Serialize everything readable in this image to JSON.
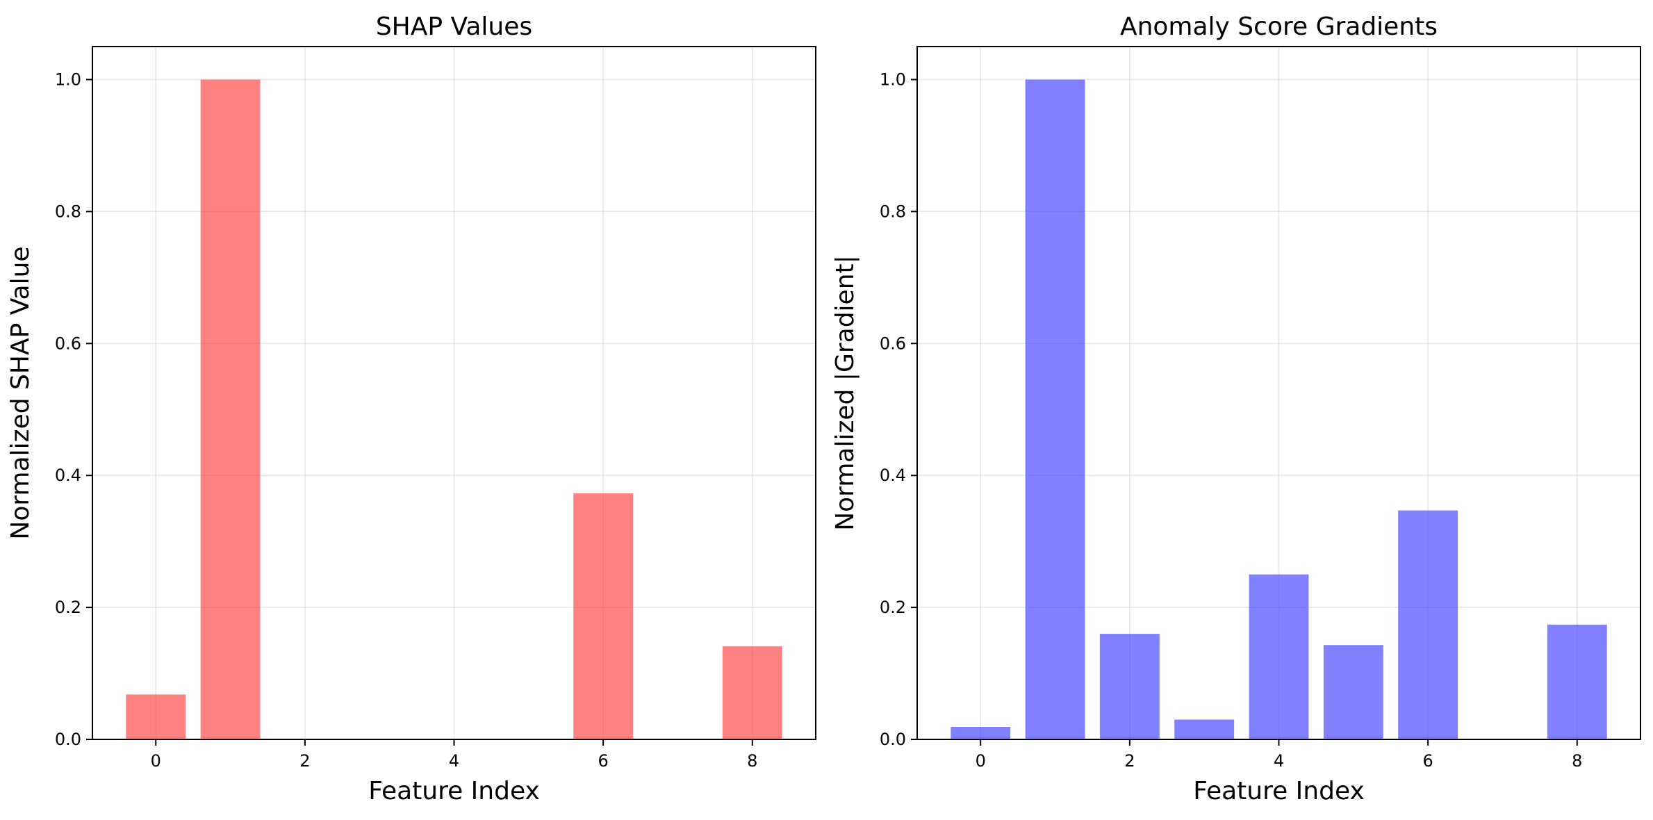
{
  "chart_data": [
    {
      "type": "bar",
      "title": "SHAP Values",
      "xlabel": "Feature Index",
      "ylabel": "Normalized SHAP Value",
      "x": [
        0,
        1,
        2,
        3,
        4,
        5,
        6,
        7,
        8
      ],
      "values": [
        0.068,
        1.0,
        0.0,
        0.0,
        0.0,
        0.0,
        0.373,
        0.0,
        0.141
      ],
      "color": "#ff4c4c",
      "xlim": [
        -0.85,
        8.85
      ],
      "ylim": [
        0,
        1.05
      ],
      "xticks": [
        0,
        2,
        4,
        6,
        8
      ],
      "yticks": [
        0.0,
        0.2,
        0.4,
        0.6,
        0.8,
        1.0
      ],
      "xtick_labels": [
        "0",
        "2",
        "4",
        "6",
        "8"
      ],
      "ytick_labels": [
        "0.0",
        "0.2",
        "0.4",
        "0.6",
        "0.8",
        "1.0"
      ],
      "grid": true
    },
    {
      "type": "bar",
      "title": "Anomaly Score Gradients",
      "xlabel": "Feature Index",
      "ylabel": "Normalized |Gradient|",
      "x": [
        0,
        1,
        2,
        3,
        4,
        5,
        6,
        7,
        8
      ],
      "values": [
        0.019,
        1.0,
        0.16,
        0.03,
        0.25,
        0.143,
        0.347,
        0.0,
        0.174
      ],
      "color": "#4c4cff",
      "xlim": [
        -0.85,
        8.85
      ],
      "ylim": [
        0,
        1.05
      ],
      "xticks": [
        0,
        2,
        4,
        6,
        8
      ],
      "yticks": [
        0.0,
        0.2,
        0.4,
        0.6,
        0.8,
        1.0
      ],
      "xtick_labels": [
        "0",
        "2",
        "4",
        "6",
        "8"
      ],
      "ytick_labels": [
        "0.0",
        "0.2",
        "0.4",
        "0.6",
        "0.8",
        "1.0"
      ],
      "grid": true
    }
  ]
}
